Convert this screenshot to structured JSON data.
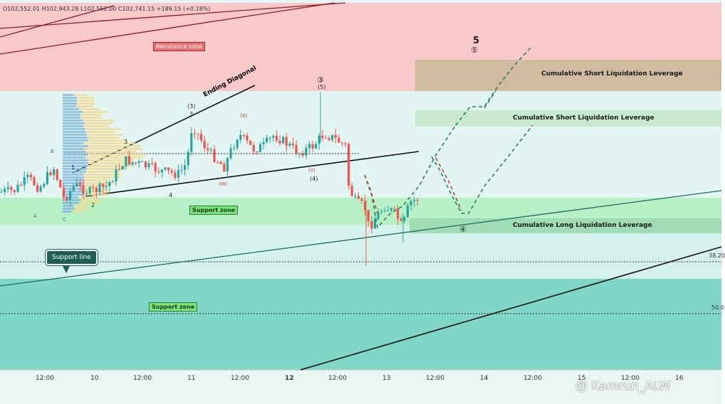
{
  "ohlc": {
    "open": "O102,552.01",
    "high": "H102,943.28",
    "low": "L102,552.00",
    "close": "C102,741.15",
    "change": "+189.15 (+0.18%)"
  },
  "zones": {
    "resistance": "Resistance zone",
    "support_upper": "Support zone",
    "support_lower": "Support zone"
  },
  "callouts": {
    "support_line": "Support line"
  },
  "liquidation_boxes": {
    "top": "Cumulative Short Liquidation Leverage",
    "middle": "Cumulative Short Liquidation Leverage",
    "bottom": "Cumulative Long Liquidation Leverage"
  },
  "pattern": {
    "ending_diagonal": "Ending Diagonal"
  },
  "waves": {
    "A": "A",
    "B": "B",
    "C": "C",
    "w1": "1",
    "w2": "2",
    "w3": "3",
    "w4": "4",
    "p3": "(3)",
    "p3b": "3",
    "p5": "(5)",
    "p4": "(4)",
    "c3": "③",
    "X": "(X)",
    "W": "(W)",
    "Y": "(Y)",
    "big5": "5",
    "c5": "⑤",
    "c4": "④"
  },
  "fib": {
    "f382": "38.20",
    "f50": "50.0"
  },
  "xaxis": {
    "t1": "12:00",
    "t2": "10",
    "t3": "12:00",
    "t4": "11",
    "t5": "12:00",
    "t6": "12",
    "t7": "12:00",
    "t8": "13",
    "t9": "12:00",
    "t10": "14",
    "t11": "12:00",
    "t12": "15",
    "t13": "12:00",
    "t14": "16"
  },
  "watermark": "@ Kamrun_ALW",
  "colors": {
    "resistance_zone": "#f8c8cb",
    "upper_support_zone": "#b6f0c4",
    "lower_support_zone": "#7fd6c6",
    "bull": "#26a69a",
    "bear": "#ef5350",
    "projection_green": "#1e7b5a",
    "projection_red": "#c0392b"
  }
}
